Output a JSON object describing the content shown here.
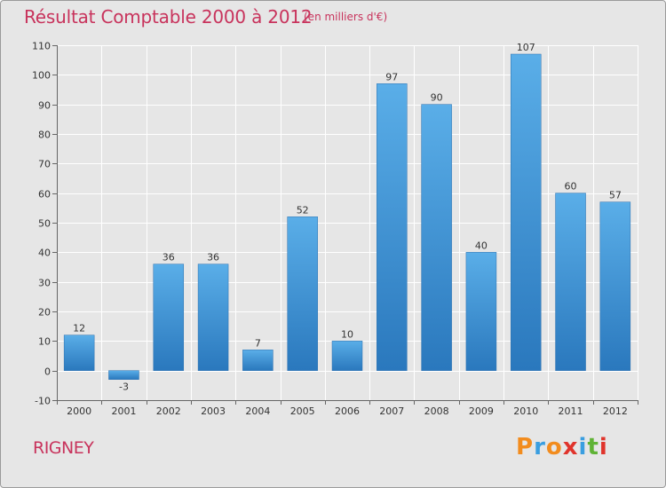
{
  "header": {
    "title": "Résultat Comptable 2000 à 2012",
    "subtitle": "(en milliers d'€)"
  },
  "footer": {
    "commune": "RIGNEY",
    "logo_text": "Proxiti",
    "logo_colors": [
      "#f28c1e",
      "#3a9ee0",
      "#f28c1e",
      "#e0342c",
      "#3a9ee0",
      "#5fb335",
      "#e0342c"
    ]
  },
  "colors": {
    "accent": "#c8335c",
    "bar_top": "#5aaee8",
    "bar_bottom": "#2a78bd",
    "plot_bg": "#e6e6e6",
    "grid": "#ffffff"
  },
  "chart_data": {
    "type": "bar",
    "title": "Résultat Comptable 2000 à 2012",
    "subtitle": "(en milliers d'€)",
    "xlabel": "",
    "ylabel": "",
    "ylim": [
      -10,
      110
    ],
    "yticks": [
      -10,
      0,
      10,
      20,
      30,
      40,
      50,
      60,
      70,
      80,
      90,
      100,
      110
    ],
    "grid": true,
    "categories": [
      "2000",
      "2001",
      "2002",
      "2003",
      "2004",
      "2005",
      "2006",
      "2007",
      "2008",
      "2009",
      "2010",
      "2011",
      "2012"
    ],
    "values": [
      12,
      -3,
      36,
      36,
      7,
      52,
      10,
      97,
      90,
      40,
      107,
      60,
      57
    ]
  }
}
